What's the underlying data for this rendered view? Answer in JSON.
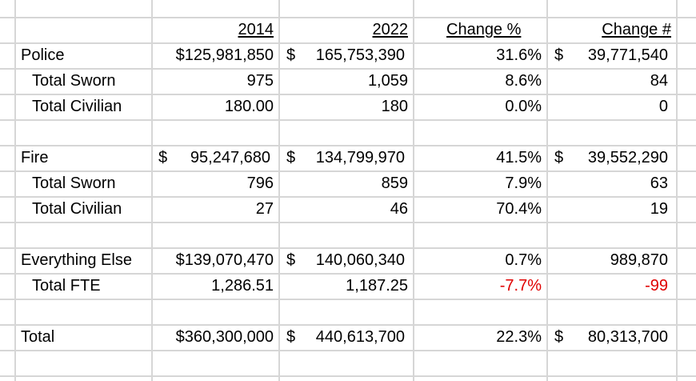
{
  "headers": {
    "year1": "2014",
    "year2": "2022",
    "change_pct": "Change %",
    "change_num": "Change #"
  },
  "rows": {
    "police": {
      "label": "Police",
      "v2014": "$125,981,850",
      "v2022_sym": "$",
      "v2022": "165,753,390",
      "pct": "31.6%",
      "num_sym": "$",
      "num": "39,771,540"
    },
    "police_sworn": {
      "label": "Total Sworn",
      "v2014": "975",
      "v2022": "1,059",
      "pct": "8.6%",
      "num": "84"
    },
    "police_civ": {
      "label": "Total Civilian",
      "v2014": "180.00",
      "v2022": "180",
      "pct": "0.0%",
      "num": "0"
    },
    "fire": {
      "label": "Fire",
      "v2014_sym": "$",
      "v2014": "95,247,680",
      "v2022_sym": "$",
      "v2022": "134,799,970",
      "pct": "41.5%",
      "num_sym": "$",
      "num": "39,552,290"
    },
    "fire_sworn": {
      "label": "Total Sworn",
      "v2014": "796",
      "v2022": "859",
      "pct": "7.9%",
      "num": "63"
    },
    "fire_civ": {
      "label": "Total Civilian",
      "v2014": "27",
      "v2022": "46",
      "pct": "70.4%",
      "num": "19"
    },
    "else": {
      "label": "Everything Else",
      "v2014": "$139,070,470",
      "v2022_sym": "$",
      "v2022": "140,060,340",
      "pct": "0.7%",
      "num": "989,870"
    },
    "else_fte": {
      "label": "Total FTE",
      "v2014": "1,286.51",
      "v2022": "1,187.25",
      "pct": "-7.7%",
      "num": "-99"
    },
    "total": {
      "label": "Total",
      "v2014": "$360,300,000",
      "v2022_sym": "$",
      "v2022": "440,613,700",
      "pct": "22.3%",
      "num_sym": "$",
      "num": "80,313,700"
    }
  },
  "colors": {
    "negative": "#e00000",
    "gridline": "#d6d6d6"
  }
}
